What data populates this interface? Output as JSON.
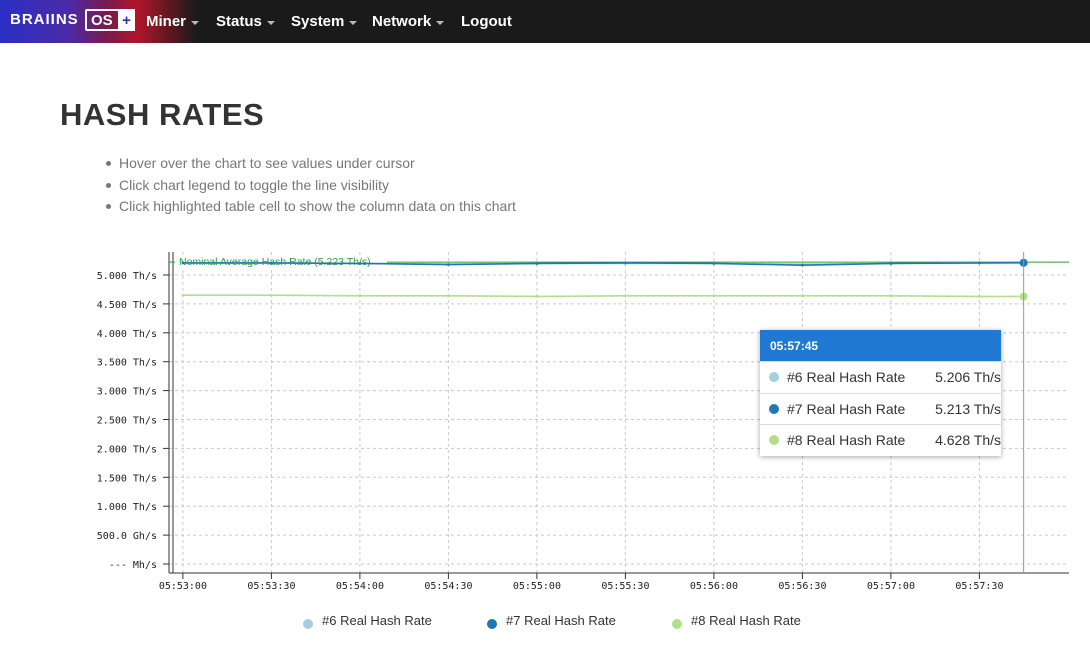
{
  "navbar": {
    "brand_text": "BRAIINS",
    "brand_os": "OS",
    "brand_plus": "+",
    "items": [
      {
        "label": "Miner",
        "dropdown": true
      },
      {
        "label": "Status",
        "dropdown": true
      },
      {
        "label": "System",
        "dropdown": true
      },
      {
        "label": "Network",
        "dropdown": true
      },
      {
        "label": "Logout",
        "dropdown": false
      }
    ]
  },
  "page": {
    "title": "HASH RATES",
    "tips": [
      "Hover over the chart to see values under cursor",
      "Click chart legend to toggle the line visibility",
      "Click highlighted table cell to show the column data on this chart"
    ]
  },
  "colors": {
    "series6": "#a6cee3",
    "series7": "#1f78b4",
    "series8": "#b2df8a",
    "nominal": "#2f9e2f",
    "tooltip_header": "#1f78d1"
  },
  "tooltip": {
    "time": "05:57:45",
    "rows": [
      {
        "name": "#6 Real Hash Rate",
        "value": "5.206 Th/s"
      },
      {
        "name": "#7 Real Hash Rate",
        "value": "5.213 Th/s"
      },
      {
        "name": "#8 Real Hash Rate",
        "value": "4.628 Th/s"
      }
    ]
  },
  "legend": [
    {
      "label": "#6 Real Hash Rate"
    },
    {
      "label": "#7 Real Hash Rate"
    },
    {
      "label": "#8 Real Hash Rate"
    }
  ],
  "chart_data": {
    "type": "line",
    "title": "",
    "xlabel": "",
    "ylabel": "",
    "ylim": [
      0,
      5.4
    ],
    "y_ticks": [
      {
        "value": 0,
        "label": "--- Mh/s"
      },
      {
        "value": 0.5,
        "label": "500.0 Gh/s"
      },
      {
        "value": 1.0,
        "label": "1.000 Th/s"
      },
      {
        "value": 1.5,
        "label": "1.500 Th/s"
      },
      {
        "value": 2.0,
        "label": "2.000 Th/s"
      },
      {
        "value": 2.5,
        "label": "2.500 Th/s"
      },
      {
        "value": 3.0,
        "label": "3.000 Th/s"
      },
      {
        "value": 3.5,
        "label": "3.500 Th/s"
      },
      {
        "value": 4.0,
        "label": "4.000 Th/s"
      },
      {
        "value": 4.5,
        "label": "4.500 Th/s"
      },
      {
        "value": 5.0,
        "label": "5.000 Th/s"
      }
    ],
    "x_ticks": [
      "05:53:00",
      "05:53:30",
      "05:54:00",
      "05:54:30",
      "05:55:00",
      "05:55:30",
      "05:56:00",
      "05:56:30",
      "05:57:00",
      "05:57:30"
    ],
    "x_range": [
      "05:52:58",
      "05:57:58"
    ],
    "grid": true,
    "legend_position": "bottom",
    "nominal": {
      "label": "Nominal Average Hash Rate (5.223 Th/s)",
      "value": 5.223
    },
    "hover_time": "05:57:45",
    "series": [
      {
        "name": "#6 Real Hash Rate",
        "x": [
          "05:53:00",
          "05:53:30",
          "05:54:00",
          "05:54:30",
          "05:55:00",
          "05:55:30",
          "05:56:00",
          "05:56:30",
          "05:57:00",
          "05:57:30",
          "05:57:45"
        ],
        "values": [
          5.21,
          5.21,
          5.2,
          5.19,
          5.2,
          5.2,
          5.2,
          5.19,
          5.2,
          5.21,
          5.206
        ]
      },
      {
        "name": "#7 Real Hash Rate",
        "x": [
          "05:53:00",
          "05:53:30",
          "05:54:00",
          "05:54:30",
          "05:55:00",
          "05:55:30",
          "05:56:00",
          "05:56:30",
          "05:57:00",
          "05:57:30",
          "05:57:45"
        ],
        "values": [
          5.21,
          5.21,
          5.2,
          5.18,
          5.2,
          5.21,
          5.2,
          5.17,
          5.2,
          5.21,
          5.213
        ]
      },
      {
        "name": "#8 Real Hash Rate",
        "x": [
          "05:53:00",
          "05:53:30",
          "05:54:00",
          "05:54:30",
          "05:55:00",
          "05:55:30",
          "05:56:00",
          "05:56:30",
          "05:57:00",
          "05:57:30",
          "05:57:45"
        ],
        "values": [
          4.65,
          4.65,
          4.64,
          4.64,
          4.63,
          4.64,
          4.64,
          4.64,
          4.64,
          4.63,
          4.628
        ]
      }
    ]
  }
}
